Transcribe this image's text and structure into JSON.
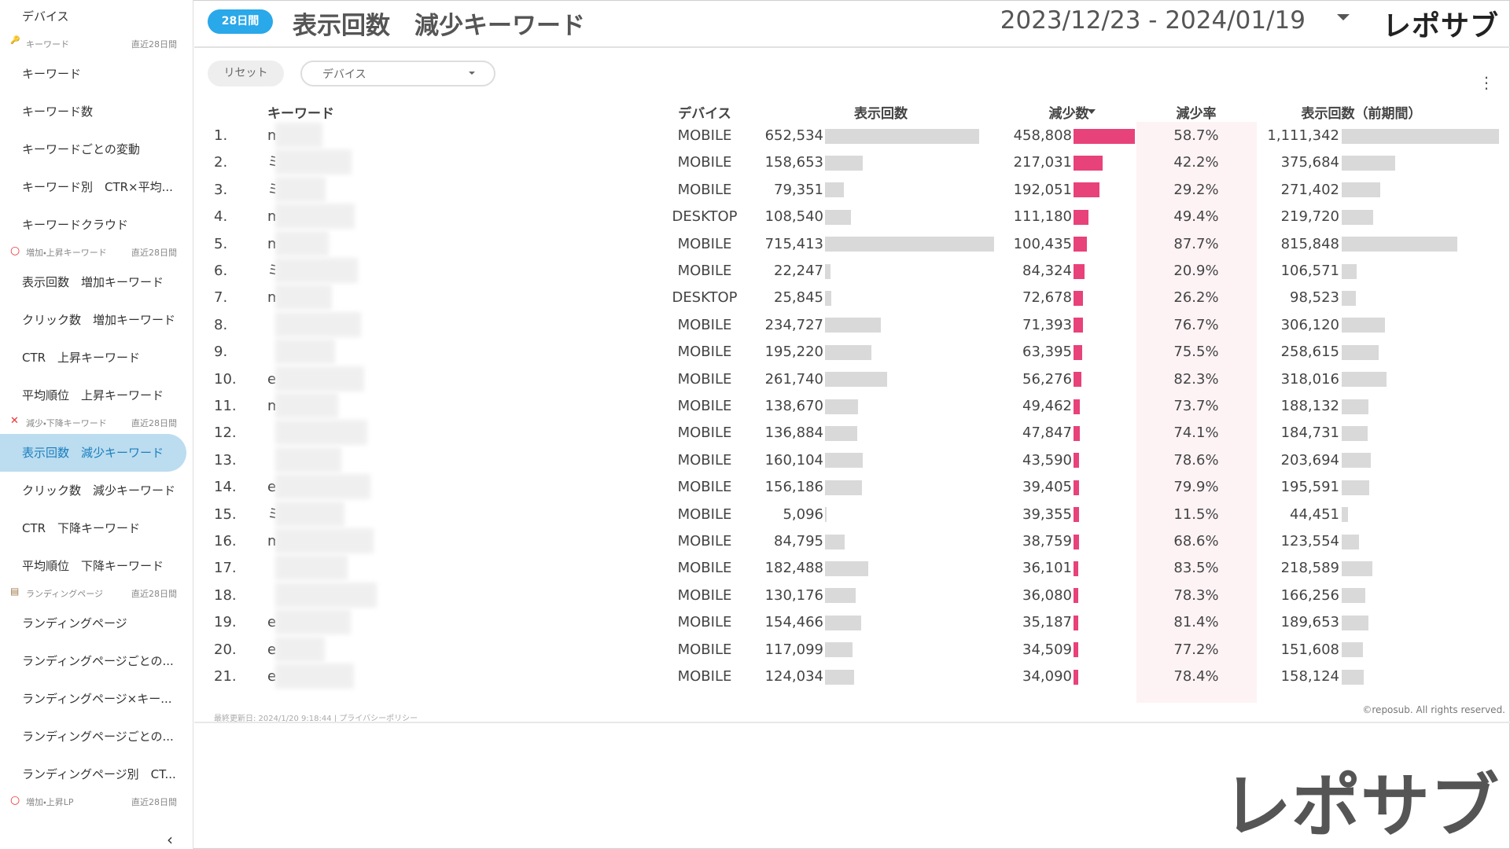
{
  "sidebar": [
    {
      "type": "item",
      "label": "デバイス"
    },
    {
      "type": "section",
      "label": "キーワード",
      "period": "直近28日間"
    },
    {
      "type": "item",
      "label": "キーワード"
    },
    {
      "type": "item",
      "label": "キーワード数"
    },
    {
      "type": "item",
      "label": "キーワードごとの変動"
    },
    {
      "type": "item",
      "label": "キーワード別　CTR×平均..."
    },
    {
      "type": "item",
      "label": "キーワードクラウド"
    },
    {
      "type": "section",
      "label": "増加・上昇キーワード",
      "period": "直近28日間"
    },
    {
      "type": "item",
      "label": "表示回数　増加キーワード"
    },
    {
      "type": "item",
      "label": "クリック数　増加キーワード"
    },
    {
      "type": "item",
      "label": "CTR　上昇キーワード"
    },
    {
      "type": "item",
      "label": "平均順位　上昇キーワード"
    },
    {
      "type": "section",
      "label": "減少・下降キーワード",
      "period": "直近28日間"
    },
    {
      "type": "item",
      "label": "表示回数　減少キーワード",
      "active": true
    },
    {
      "type": "item",
      "label": "クリック数　減少キーワード"
    },
    {
      "type": "item",
      "label": "CTR　下降キーワード"
    },
    {
      "type": "item",
      "label": "平均順位　下降キーワード"
    },
    {
      "type": "section",
      "label": "ランディングページ",
      "period": "直近28日間"
    },
    {
      "type": "item",
      "label": "ランディングページ"
    },
    {
      "type": "item",
      "label": "ランディングページごとの..."
    },
    {
      "type": "item",
      "label": "ランディングページ×キー..."
    },
    {
      "type": "item",
      "label": "ランディングページごとの..."
    },
    {
      "type": "item",
      "label": "ランディングページ別　CT..."
    },
    {
      "type": "section",
      "label": "増加・上昇LP",
      "period": "直近28日間"
    }
  ],
  "header": {
    "badge": "28日間",
    "title": "表示回数　減少キーワード",
    "date_range": "2023/12/23 - 2024/01/19",
    "logo": "レポサブ"
  },
  "filters": {
    "reset": "リセット",
    "device": "デバイス"
  },
  "table": {
    "columns": {
      "keyword": "キーワード",
      "device": "デバイス",
      "imp": "表示回数",
      "dec": "減少数",
      "rate": "減少率",
      "prev": "表示回数（前期間）"
    },
    "rows": [
      {
        "rank": "1.",
        "keyword": "m",
        "device": "MOBILE",
        "imp": {
          "value": 652534,
          "label": "652,534"
        },
        "dec": {
          "value": 458808,
          "label": "458,808"
        },
        "rate": "58.7%",
        "prev": {
          "value": 1111342,
          "label": "1,111,342"
        }
      },
      {
        "rank": "2.",
        "keyword": "ミ",
        "device": "MOBILE",
        "imp": {
          "value": 158653,
          "label": "158,653"
        },
        "dec": {
          "value": 217031,
          "label": "217,031"
        },
        "rate": "42.2%",
        "prev": {
          "value": 375684,
          "label": "375,684"
        }
      },
      {
        "rank": "3.",
        "keyword": "ミ",
        "device": "MOBILE",
        "imp": {
          "value": 79351,
          "label": "79,351"
        },
        "dec": {
          "value": 192051,
          "label": "192,051"
        },
        "rate": "29.2%",
        "prev": {
          "value": 271402,
          "label": "271,402"
        }
      },
      {
        "rank": "4.",
        "keyword": "m",
        "device": "DESKTOP",
        "imp": {
          "value": 108540,
          "label": "108,540"
        },
        "dec": {
          "value": 111180,
          "label": "111,180"
        },
        "rate": "49.4%",
        "prev": {
          "value": 219720,
          "label": "219,720"
        }
      },
      {
        "rank": "5.",
        "keyword": "m",
        "device": "MOBILE",
        "imp": {
          "value": 715413,
          "label": "715,413"
        },
        "dec": {
          "value": 100435,
          "label": "100,435"
        },
        "rate": "87.7%",
        "prev": {
          "value": 815848,
          "label": "815,848"
        }
      },
      {
        "rank": "6.",
        "keyword": "ミ",
        "device": "MOBILE",
        "imp": {
          "value": 22247,
          "label": "22,247"
        },
        "dec": {
          "value": 84324,
          "label": "84,324"
        },
        "rate": "20.9%",
        "prev": {
          "value": 106571,
          "label": "106,571"
        }
      },
      {
        "rank": "7.",
        "keyword": "m",
        "device": "DESKTOP",
        "imp": {
          "value": 25845,
          "label": "25,845"
        },
        "dec": {
          "value": 72678,
          "label": "72,678"
        },
        "rate": "26.2%",
        "prev": {
          "value": 98523,
          "label": "98,523"
        }
      },
      {
        "rank": "8.",
        "device": "MOBILE",
        "imp": {
          "value": 234727,
          "label": "234,727"
        },
        "dec": {
          "value": 71393,
          "label": "71,393"
        },
        "rate": "76.7%",
        "prev": {
          "value": 306120,
          "label": "306,120"
        }
      },
      {
        "rank": "9.",
        "device": "MOBILE",
        "imp": {
          "value": 195220,
          "label": "195,220"
        },
        "dec": {
          "value": 63395,
          "label": "63,395"
        },
        "rate": "75.5%",
        "prev": {
          "value": 258615,
          "label": "258,615"
        }
      },
      {
        "rank": "10.",
        "keyword": "e",
        "device": "MOBILE",
        "imp": {
          "value": 261740,
          "label": "261,740"
        },
        "dec": {
          "value": 56276,
          "label": "56,276"
        },
        "rate": "82.3%",
        "prev": {
          "value": 318016,
          "label": "318,016"
        }
      },
      {
        "rank": "11.",
        "keyword": "m",
        "device": "MOBILE",
        "imp": {
          "value": 138670,
          "label": "138,670"
        },
        "dec": {
          "value": 49462,
          "label": "49,462"
        },
        "rate": "73.7%",
        "prev": {
          "value": 188132,
          "label": "188,132"
        }
      },
      {
        "rank": "12.",
        "device": "MOBILE",
        "imp": {
          "value": 136884,
          "label": "136,884"
        },
        "dec": {
          "value": 47847,
          "label": "47,847"
        },
        "rate": "74.1%",
        "prev": {
          "value": 184731,
          "label": "184,731"
        }
      },
      {
        "rank": "13.",
        "device": "MOBILE",
        "imp": {
          "value": 160104,
          "label": "160,104"
        },
        "dec": {
          "value": 43590,
          "label": "43,590"
        },
        "rate": "78.6%",
        "prev": {
          "value": 203694,
          "label": "203,694"
        }
      },
      {
        "rank": "14.",
        "keyword": "e",
        "device": "MOBILE",
        "imp": {
          "value": 156186,
          "label": "156,186"
        },
        "dec": {
          "value": 39405,
          "label": "39,405"
        },
        "rate": "79.9%",
        "prev": {
          "value": 195591,
          "label": "195,591"
        }
      },
      {
        "rank": "15.",
        "keyword": "ミ",
        "device": "MOBILE",
        "imp": {
          "value": 5096,
          "label": "5,096"
        },
        "dec": {
          "value": 39355,
          "label": "39,355"
        },
        "rate": "11.5%",
        "prev": {
          "value": 44451,
          "label": "44,451"
        }
      },
      {
        "rank": "16.",
        "keyword": "m",
        "device": "MOBILE",
        "imp": {
          "value": 84795,
          "label": "84,795"
        },
        "dec": {
          "value": 38759,
          "label": "38,759"
        },
        "rate": "68.6%",
        "prev": {
          "value": 123554,
          "label": "123,554"
        }
      },
      {
        "rank": "17.",
        "device": "MOBILE",
        "imp": {
          "value": 182488,
          "label": "182,488"
        },
        "dec": {
          "value": 36101,
          "label": "36,101"
        },
        "rate": "83.5%",
        "prev": {
          "value": 218589,
          "label": "218,589"
        }
      },
      {
        "rank": "18.",
        "device": "MOBILE",
        "imp": {
          "value": 130176,
          "label": "130,176"
        },
        "dec": {
          "value": 36080,
          "label": "36,080"
        },
        "rate": "78.3%",
        "prev": {
          "value": 166256,
          "label": "166,256"
        }
      },
      {
        "rank": "19.",
        "keyword": "e",
        "device": "MOBILE",
        "imp": {
          "value": 154466,
          "label": "154,466"
        },
        "dec": {
          "value": 35187,
          "label": "35,187"
        },
        "rate": "81.4%",
        "prev": {
          "value": 189653,
          "label": "189,653"
        }
      },
      {
        "rank": "20.",
        "keyword": "e",
        "device": "MOBILE",
        "imp": {
          "value": 117099,
          "label": "117,099"
        },
        "dec": {
          "value": 34509,
          "label": "34,509"
        },
        "rate": "77.2%",
        "prev": {
          "value": 151608,
          "label": "151,608"
        }
      },
      {
        "rank": "21.",
        "keyword": "e",
        "device": "MOBILE",
        "imp": {
          "value": 124034,
          "label": "124,034"
        },
        "dec": {
          "value": 34090,
          "label": "34,090"
        },
        "rate": "78.4%",
        "prev": {
          "value": 158124,
          "label": "158,124"
        }
      }
    ]
  },
  "footer": {
    "updated": "最終更新日: 2024/1/20 9:18:44",
    "separator": "|",
    "privacy": "プライバシーポリシー",
    "copyright": "©reposub. All rights reserved.",
    "brand": "レポサブ"
  }
}
